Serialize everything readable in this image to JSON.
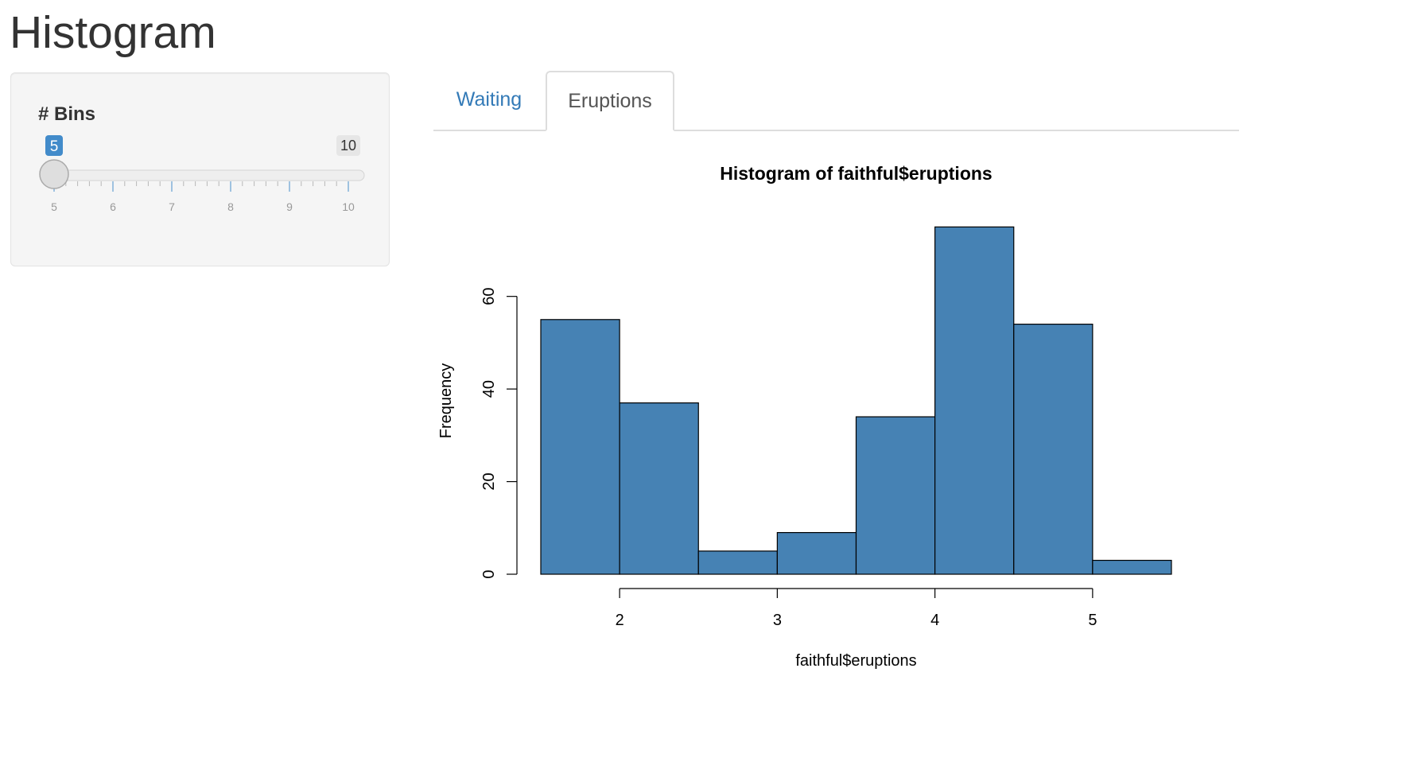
{
  "page": {
    "title": "Histogram"
  },
  "sidebar": {
    "label": "# Bins",
    "slider": {
      "value": 5,
      "min": 5,
      "max": 10,
      "min_label": "5",
      "max_label": "10",
      "value_label": "5",
      "tick_labels": [
        "5",
        "6",
        "7",
        "8",
        "9",
        "10"
      ],
      "accent_color": "#428bca"
    }
  },
  "tabs": [
    {
      "label": "Waiting",
      "active": false
    },
    {
      "label": "Eruptions",
      "active": true
    }
  ],
  "chart_data": {
    "type": "bar",
    "title": "Histogram of faithful$eruptions",
    "xlabel": "faithful$eruptions",
    "ylabel": "Frequency",
    "bar_color": "#4682b4",
    "bins": [
      {
        "x0": 1.5,
        "x1": 2.0,
        "count": 55
      },
      {
        "x0": 2.0,
        "x1": 2.5,
        "count": 37
      },
      {
        "x0": 2.5,
        "x1": 3.0,
        "count": 5
      },
      {
        "x0": 3.0,
        "x1": 3.5,
        "count": 9
      },
      {
        "x0": 3.5,
        "x1": 4.0,
        "count": 34
      },
      {
        "x0": 4.0,
        "x1": 4.5,
        "count": 75
      },
      {
        "x0": 4.5,
        "x1": 5.0,
        "count": 54
      },
      {
        "x0": 5.0,
        "x1": 5.5,
        "count": 3
      }
    ],
    "xticks": [
      2,
      3,
      4,
      5
    ],
    "yticks": [
      0,
      20,
      40,
      60
    ],
    "xlim": [
      1.5,
      5.5
    ],
    "ylim": [
      0,
      75
    ]
  }
}
